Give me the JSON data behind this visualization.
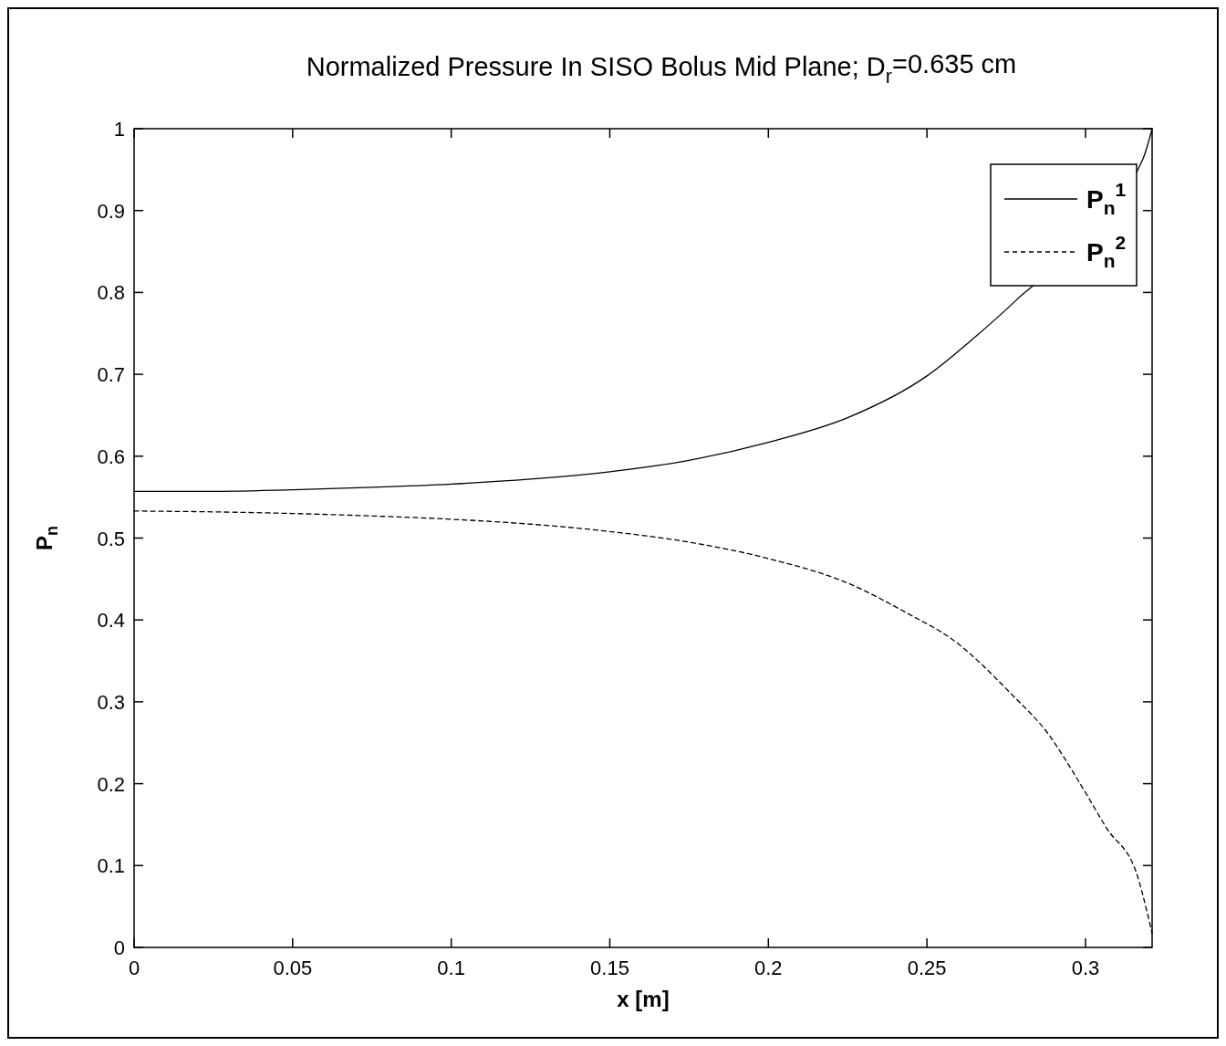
{
  "chart_data": {
    "type": "line",
    "title": "Normalized Pressure In SISO Bolus Mid Plane; D$_{r}$=0.635 cm",
    "xlabel": "x [m]",
    "ylabel": "P$_{n}$",
    "xlim": [
      0,
      0.321
    ],
    "ylim": [
      0,
      1
    ],
    "xticks": [
      0,
      0.05,
      0.1,
      0.15,
      0.2,
      0.25,
      0.3
    ],
    "yticks": [
      0,
      0.1,
      0.2,
      0.3,
      0.4,
      0.5,
      0.6,
      0.7,
      0.8,
      0.9,
      1
    ],
    "grid": false,
    "legend": "top right",
    "marker": "none",
    "series": [
      {
        "name": "P$_{n}$$^{1}$",
        "color": "#000000",
        "line_style": "solid",
        "x": [
          0,
          0.025,
          0.05,
          0.075,
          0.1,
          0.125,
          0.15,
          0.175,
          0.2,
          0.225,
          0.25,
          0.265,
          0.278,
          0.318,
          0.321
        ],
        "values": [
          0.557,
          0.557,
          0.559,
          0.562,
          0.566,
          0.572,
          0.581,
          0.595,
          0.617,
          0.647,
          0.698,
          0.745,
          0.79,
          0.962,
          1.0
        ]
      },
      {
        "name": "P$_{n}$$^{2}$",
        "color": "#000000",
        "line_style": "dashed",
        "x": [
          0,
          0.025,
          0.05,
          0.075,
          0.1,
          0.125,
          0.15,
          0.175,
          0.2,
          0.225,
          0.2453,
          0.257,
          0.277,
          0.288,
          0.298,
          0.3066,
          0.3164,
          0.318,
          0.321
        ],
        "values": [
          0.533,
          0.532,
          0.53,
          0.527,
          0.523,
          0.517,
          0.508,
          0.495,
          0.475,
          0.445,
          0.405,
          0.379,
          0.308,
          0.262,
          0.202,
          0.146,
          0.087,
          0.065,
          0.017
        ]
      }
    ]
  }
}
